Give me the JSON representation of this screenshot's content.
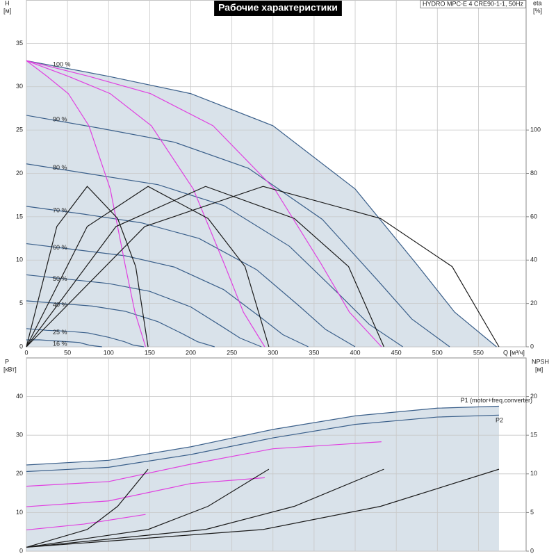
{
  "chart_data": [
    {
      "type": "line",
      "title": "Рабочие характеристики",
      "subtitle": "HYDRO MPC-E 4 CRE90-1-1, 50Hz",
      "x_label": "Q [м³/ч]",
      "y_label": "H",
      "y_unit": "[м]",
      "y2_label": "eta",
      "y2_unit": "[%]",
      "xlim": [
        0,
        608
      ],
      "xticks": [
        0,
        50,
        100,
        150,
        200,
        250,
        300,
        350,
        400,
        450,
        500,
        550
      ],
      "ylim": [
        0,
        40
      ],
      "yticks": [
        0,
        5,
        10,
        15,
        20,
        25,
        30,
        35
      ],
      "y2lim": [
        0,
        160
      ],
      "y2ticks": [
        0,
        20,
        40,
        60,
        80,
        100
      ],
      "grid": true,
      "fill_color": "#d2dde6",
      "series": [
        {
          "name": "100 %",
          "color": "#3a5f8a",
          "x": [
            0,
            100,
            200,
            300,
            400,
            475,
            521,
            572
          ],
          "values": [
            33,
            31.2,
            29.2,
            25.5,
            18.2,
            9.5,
            4,
            0
          ]
        },
        {
          "name": "90 %",
          "color": "#3a5f8a",
          "x": [
            0,
            90,
            180,
            270,
            360,
            427,
            469,
            515
          ],
          "values": [
            26.7,
            25.2,
            23.6,
            20.6,
            14.7,
            7.7,
            3.2,
            0
          ]
        },
        {
          "name": "80 %",
          "color": "#3a5f8a",
          "x": [
            0,
            80,
            160,
            240,
            320,
            380,
            417,
            458
          ],
          "values": [
            21.1,
            19.9,
            18.7,
            16.3,
            11.6,
            6.1,
            2.6,
            0
          ]
        },
        {
          "name": "70 %",
          "color": "#3a5f8a",
          "x": [
            0,
            70,
            140,
            210,
            280,
            332,
            364,
            400
          ],
          "values": [
            16.2,
            15.3,
            14.3,
            12.5,
            8.9,
            4.7,
            2,
            0
          ]
        },
        {
          "name": "60 %",
          "color": "#3a5f8a",
          "x": [
            0,
            60,
            120,
            180,
            240,
            285,
            312,
            343
          ],
          "values": [
            11.9,
            11.2,
            10.5,
            9.2,
            6.6,
            3.4,
            1.4,
            0
          ]
        },
        {
          "name": "50 %",
          "color": "#3a5f8a",
          "x": [
            0,
            50,
            100,
            150,
            200,
            237,
            260,
            286
          ],
          "values": [
            8.3,
            7.8,
            7.3,
            6.4,
            4.6,
            2.4,
            1,
            0
          ]
        },
        {
          "name": "40 %",
          "color": "#3a5f8a",
          "x": [
            0,
            40,
            80,
            120,
            160,
            190,
            208,
            229
          ],
          "values": [
            5.3,
            5,
            4.7,
            4.1,
            2.9,
            1.5,
            0.6,
            0
          ]
        },
        {
          "name": "25 %",
          "color": "#3a5f8a",
          "x": [
            0,
            25,
            50,
            75,
            100,
            119,
            130,
            143
          ],
          "values": [
            2.1,
            1.9,
            1.8,
            1.6,
            1.1,
            0.6,
            0.2,
            0
          ]
        },
        {
          "name": "16 %",
          "color": "#3a5f8a",
          "x": [
            0,
            16,
            32,
            48,
            64,
            76,
            83,
            92
          ],
          "values": [
            0.8,
            0.8,
            0.7,
            0.6,
            0.5,
            0.2,
            0.1,
            0
          ]
        },
        {
          "color": "#e040e0",
          "x": [
            0,
            25,
            51,
            76,
            102,
            120,
            132,
            145
          ],
          "values": [
            33,
            31.2,
            29.2,
            25.5,
            18.2,
            9.5,
            4,
            0
          ]
        },
        {
          "color": "#e040e0",
          "x": [
            0,
            51,
            102,
            152,
            203,
            241,
            264,
            290
          ],
          "values": [
            33,
            31.2,
            29.2,
            25.5,
            18.2,
            9.5,
            4,
            0
          ]
        },
        {
          "color": "#e040e0",
          "x": [
            0,
            76,
            151,
            227,
            302,
            359,
            393,
            432
          ],
          "values": [
            33,
            31.2,
            29.2,
            25.5,
            18.2,
            9.5,
            4,
            0
          ]
        },
        {
          "color": "#1a1a1a",
          "axis": "y2",
          "x": [
            0,
            37,
            74,
            111,
            133,
            148
          ],
          "values": [
            0,
            55.5,
            74,
            59.2,
            37,
            0
          ]
        },
        {
          "color": "#1a1a1a",
          "axis": "y2",
          "x": [
            0,
            74,
            148,
            221,
            266,
            295
          ],
          "values": [
            0,
            55.5,
            74,
            59.2,
            37,
            0
          ]
        },
        {
          "color": "#1a1a1a",
          "axis": "y2",
          "x": [
            0,
            109,
            218,
            326,
            392,
            435
          ],
          "values": [
            0,
            55.5,
            74,
            59.2,
            37,
            0
          ]
        },
        {
          "color": "#1a1a1a",
          "axis": "y2",
          "x": [
            0,
            144,
            288,
            431,
            518,
            575
          ],
          "values": [
            0,
            55.5,
            74,
            59.2,
            37,
            0
          ]
        }
      ]
    },
    {
      "type": "line",
      "y_label": "P",
      "y_unit": "[кВт]",
      "y2_label": "NPSH",
      "y2_unit": "[м]",
      "xlim": [
        0,
        608
      ],
      "xticks": [
        0,
        50,
        100,
        150,
        200,
        250,
        300,
        350,
        400,
        450,
        500,
        550
      ],
      "ylim": [
        0,
        50
      ],
      "yticks": [
        0,
        10,
        20,
        30,
        40
      ],
      "y2lim": [
        0,
        25
      ],
      "y2ticks": [
        0,
        5,
        10,
        15,
        20
      ],
      "grid": true,
      "fill_color": "#d2dde6",
      "series": [
        {
          "name": "P1 (motor+freq.converter)",
          "color": "#3a5f8a",
          "x": [
            0,
            100,
            200,
            300,
            400,
            500,
            575
          ],
          "values": [
            22.3,
            23.5,
            27,
            31.5,
            35,
            37,
            37.5
          ]
        },
        {
          "name": "P2",
          "color": "#3a5f8a",
          "x": [
            0,
            100,
            200,
            300,
            400,
            500,
            575
          ],
          "values": [
            20.6,
            21.7,
            25,
            29.3,
            32.8,
            34.7,
            35.2
          ]
        },
        {
          "color": "#e040e0",
          "x": [
            0,
            100,
            200,
            300,
            432
          ],
          "values": [
            16.8,
            18,
            22.5,
            26.5,
            28.3
          ]
        },
        {
          "color": "#e040e0",
          "x": [
            0,
            100,
            200,
            290
          ],
          "values": [
            11.5,
            13,
            17.5,
            19
          ]
        },
        {
          "color": "#e040e0",
          "x": [
            0,
            70,
            145
          ],
          "values": [
            5.5,
            7,
            9.5
          ]
        },
        {
          "color": "#1a1a1a",
          "axis": "y2",
          "x": [
            0,
            74,
            111,
            148
          ],
          "values": [
            0.5,
            2.8,
            5.8,
            10.6
          ]
        },
        {
          "color": "#1a1a1a",
          "axis": "y2",
          "x": [
            0,
            148,
            221,
            295
          ],
          "values": [
            0.5,
            2.8,
            5.8,
            10.6
          ]
        },
        {
          "color": "#1a1a1a",
          "axis": "y2",
          "x": [
            0,
            218,
            326,
            435
          ],
          "values": [
            0.5,
            2.8,
            5.8,
            10.6
          ]
        },
        {
          "color": "#1a1a1a",
          "axis": "y2",
          "x": [
            0,
            288,
            431,
            575
          ],
          "values": [
            0.5,
            2.8,
            5.8,
            10.6
          ]
        }
      ]
    }
  ]
}
